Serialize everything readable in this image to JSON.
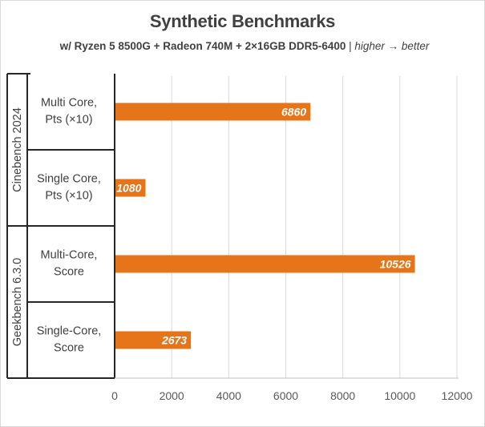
{
  "chart_data": {
    "type": "bar",
    "orientation": "horizontal",
    "title": "Synthetic Benchmarks",
    "subtitle_bold": "w/ Ryzen 5 8500G + Radeon 740M + 2×16GB DDR5-6400",
    "subtitle_sep": " | ",
    "subtitle_italic": "higher → better",
    "groups": [
      {
        "name": "Cinebench 2024",
        "categories": [
          "Multi Core, Pts (×10)",
          "Single Core, Pts (×10)"
        ]
      },
      {
        "name": "Geekbench 6.3.0",
        "categories": [
          "Multi-Core, Score",
          "Single-Core, Score"
        ]
      }
    ],
    "categories": [
      [
        "Multi Core,",
        "Pts (×10)"
      ],
      [
        "Single Core,",
        "Pts (×10)"
      ],
      [
        "Multi-Core,",
        "Score"
      ],
      [
        "Single-Core,",
        "Score"
      ]
    ],
    "values": [
      6860,
      1080,
      10526,
      2673
    ],
    "xlim": [
      0,
      12000
    ],
    "xticks": [
      0,
      2000,
      4000,
      6000,
      8000,
      10000,
      12000
    ],
    "grid": true,
    "bar_color": "#e67519",
    "data_labels": true
  }
}
